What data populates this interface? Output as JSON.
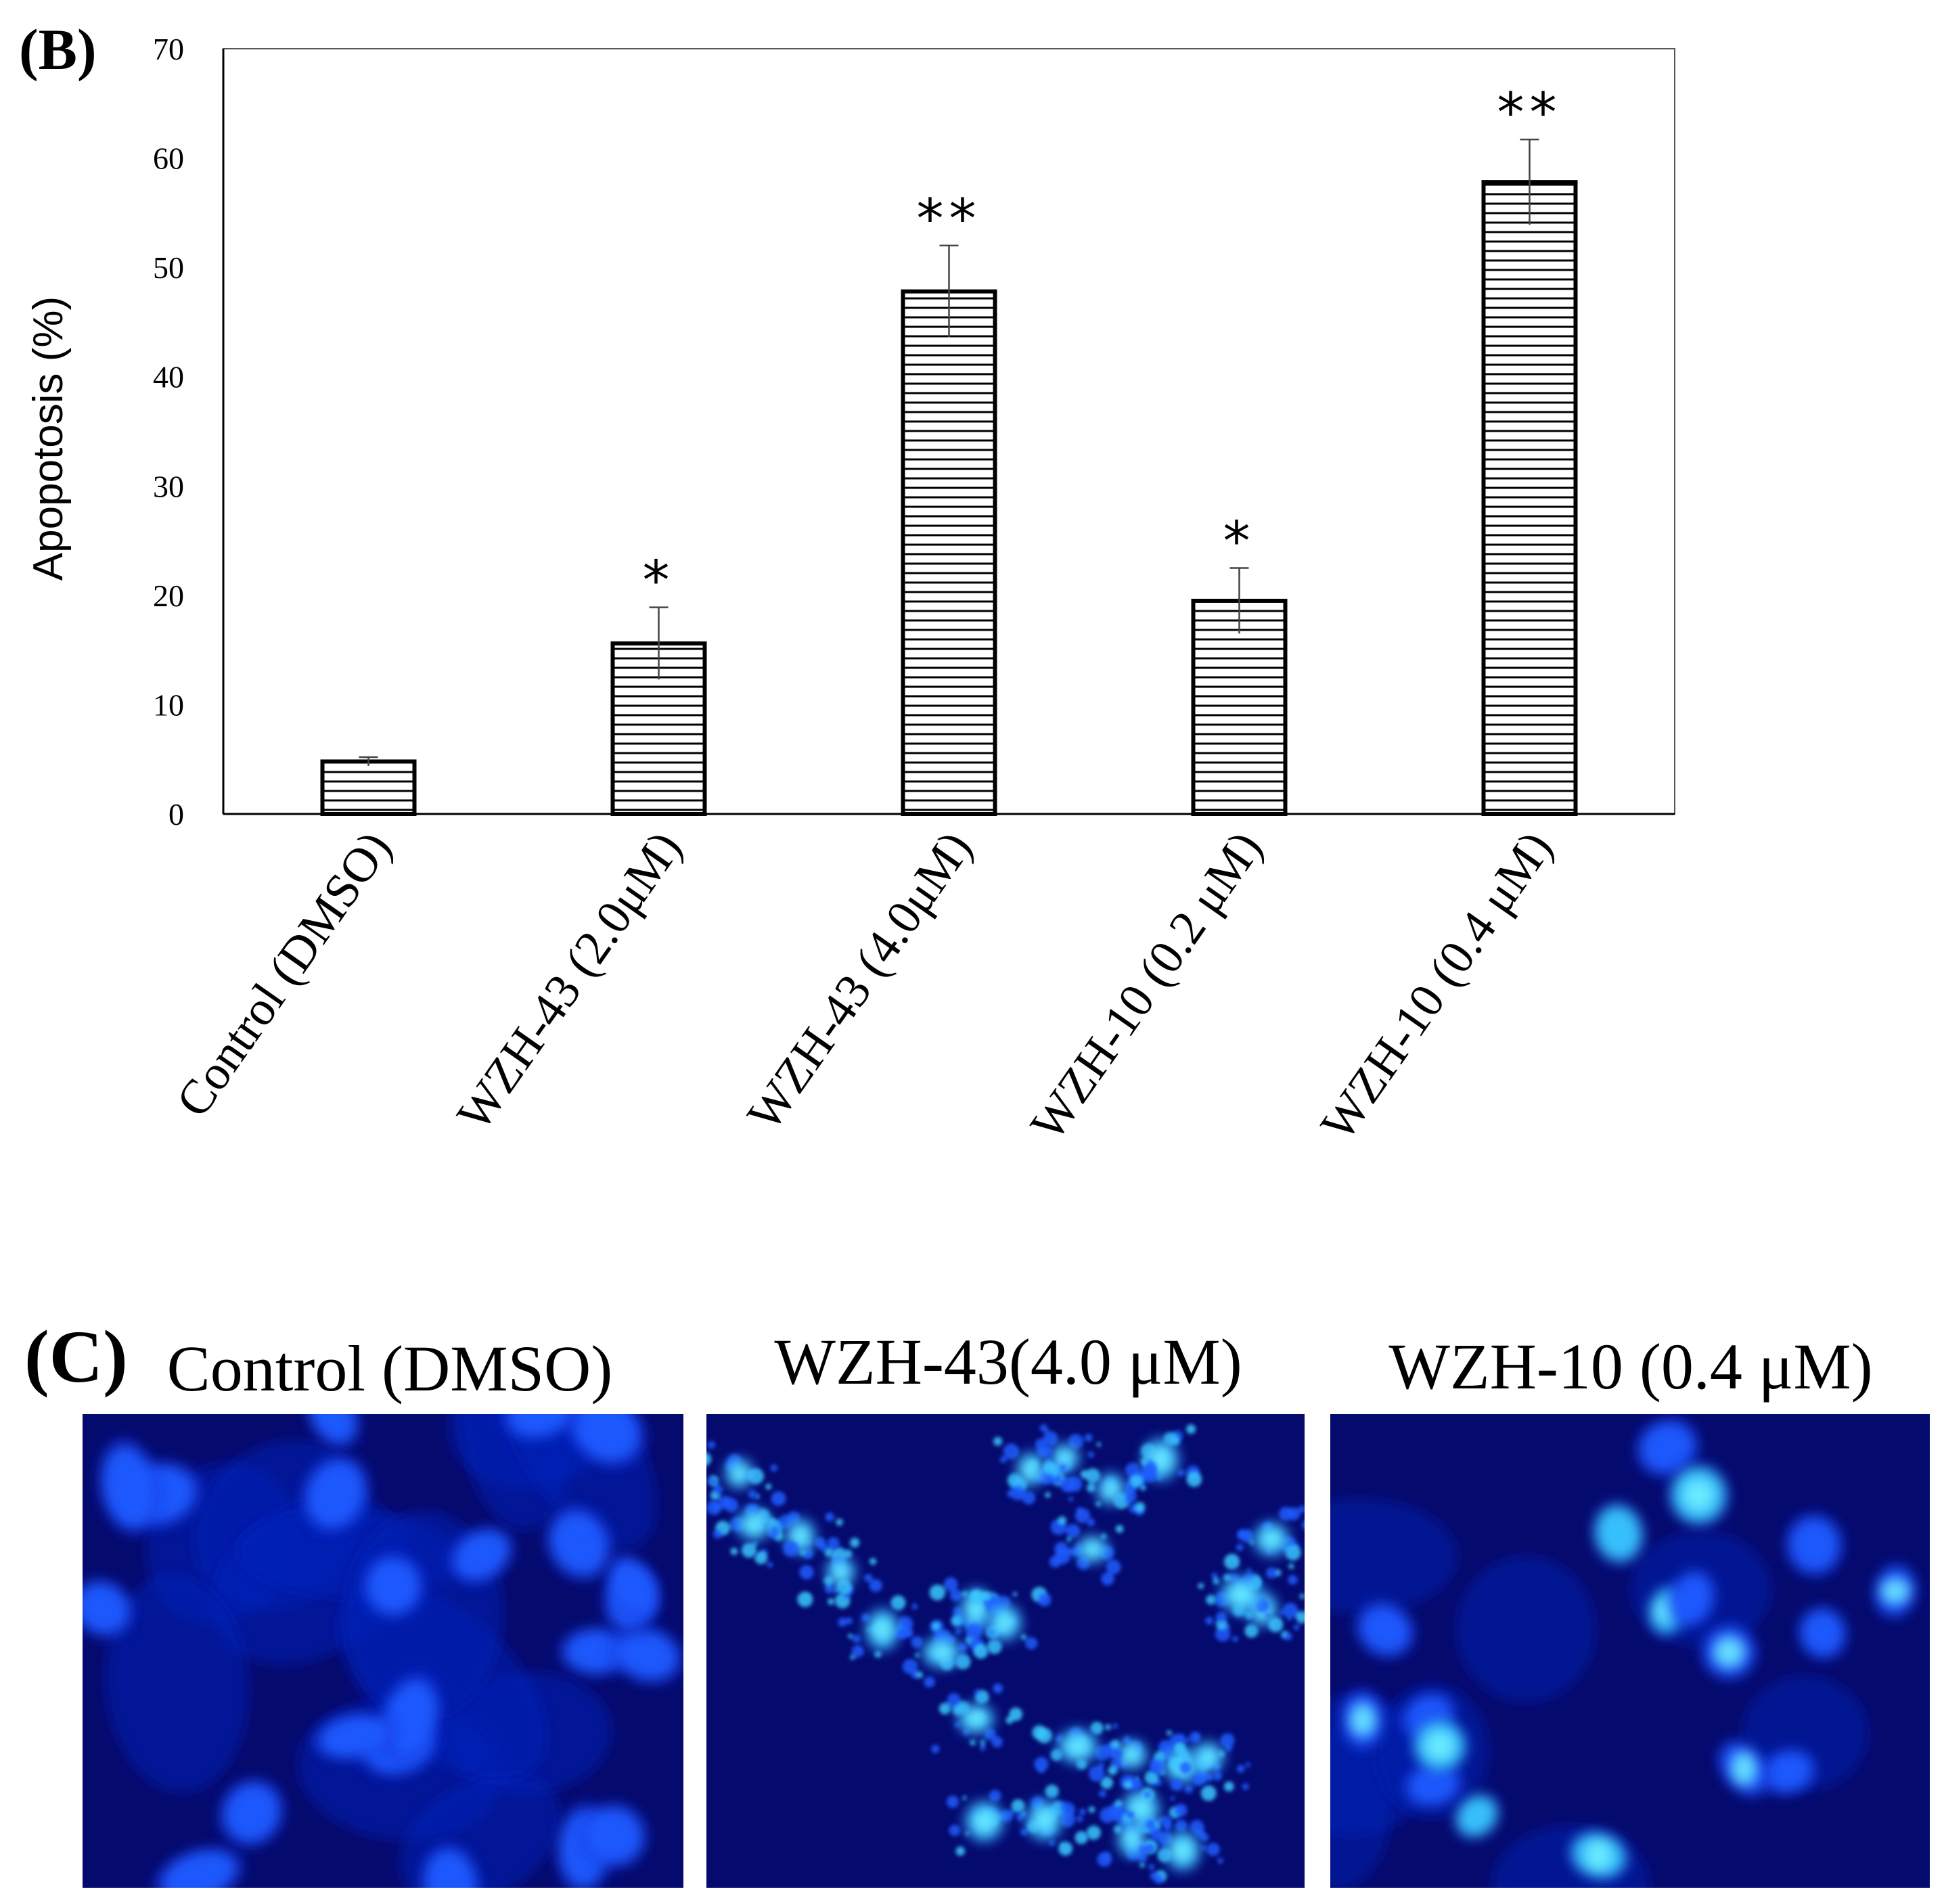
{
  "panel_b": {
    "label": "(B)",
    "chart_data": {
      "type": "bar",
      "ylabel": "Apopotosis (%)",
      "xlabel": "",
      "ylim": [
        0,
        70
      ],
      "yticks": [
        0,
        10,
        20,
        30,
        40,
        50,
        60,
        70
      ],
      "grid": false,
      "bar_fill": "horizontal-hatch",
      "categories": [
        "Control (DMSO)",
        "WZH-43 (2.0μM)",
        "WZH-43 (4.0μM)",
        "WZH-10 (0.2 μM)",
        "WZH-10 (0.4 μM)"
      ],
      "values": [
        4.8,
        15.6,
        47.8,
        19.5,
        57.8
      ],
      "errors": [
        0.4,
        3.3,
        4.2,
        3.0,
        3.9
      ],
      "significance": [
        "",
        "*",
        "**",
        "*",
        "**"
      ]
    }
  },
  "panel_c": {
    "label": "(C)",
    "images": [
      {
        "title": "Control (DMSO)",
        "kind": "control"
      },
      {
        "title": "WZH-43(4.0 μM)",
        "kind": "fragmented"
      },
      {
        "title": "WZH-10 (0.4 μM)",
        "kind": "bright"
      }
    ]
  },
  "colors": {
    "stain_background": "#050a6e",
    "nucleus": "#1e5cff",
    "bright_nucleus": "#39c8ff"
  }
}
